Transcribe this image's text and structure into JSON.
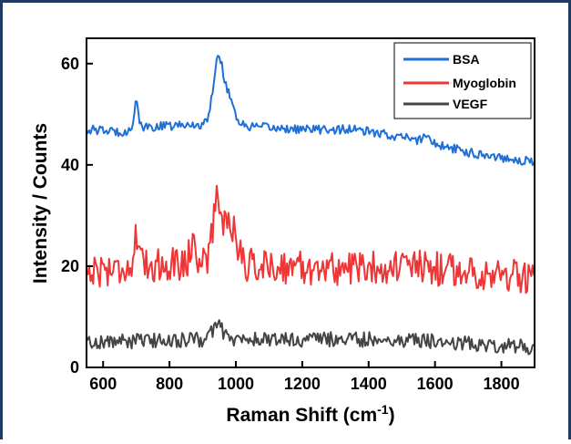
{
  "chart_data": {
    "type": "line",
    "xlabel": "Raman Shift (cm",
    "xlabel_superscript": "-1",
    "xlabel_close": ")",
    "ylabel": "Intensity / Counts",
    "xlim": [
      550,
      1900
    ],
    "ylim": [
      0,
      65
    ],
    "xticks": [
      600,
      800,
      1000,
      1200,
      1400,
      1600,
      1800
    ],
    "yticks": [
      0,
      20,
      40,
      60
    ],
    "grid": false,
    "legend_position": "top-right",
    "series": [
      {
        "name": "BSA",
        "color": "#1f6fd6",
        "baseline": [
          [
            550,
            47
          ],
          [
            650,
            46.5
          ],
          [
            750,
            47.5
          ],
          [
            900,
            48
          ],
          [
            1050,
            47.5
          ],
          [
            1200,
            47
          ],
          [
            1350,
            47
          ],
          [
            1500,
            45.5
          ],
          [
            1600,
            44
          ],
          [
            1700,
            42.5
          ],
          [
            1800,
            41.5
          ],
          [
            1900,
            40.5
          ]
        ],
        "peaks": [
          [
            700,
            6,
            6
          ],
          [
            945,
            12,
            14
          ],
          [
            975,
            6,
            18
          ],
          [
            1575,
            1.5,
            12
          ]
        ],
        "noise": 0.9
      },
      {
        "name": "Myoglobin",
        "color": "#ee3636",
        "baseline": [
          [
            550,
            19
          ],
          [
            700,
            20
          ],
          [
            900,
            21
          ],
          [
            1100,
            20
          ],
          [
            1300,
            19.5
          ],
          [
            1500,
            20
          ],
          [
            1700,
            19
          ],
          [
            1900,
            17.5
          ]
        ],
        "peaks": [
          [
            700,
            6,
            5
          ],
          [
            870,
            4,
            8
          ],
          [
            945,
            12,
            14
          ],
          [
            985,
            8,
            16
          ]
        ],
        "noise": 3.4
      },
      {
        "name": "VEGF",
        "color": "#444444",
        "baseline": [
          [
            550,
            5
          ],
          [
            900,
            5.5
          ],
          [
            1200,
            5.5
          ],
          [
            1500,
            5.5
          ],
          [
            1900,
            4
          ]
        ],
        "peaks": [
          [
            945,
            3,
            15
          ]
        ],
        "noise": 1.5
      }
    ]
  }
}
